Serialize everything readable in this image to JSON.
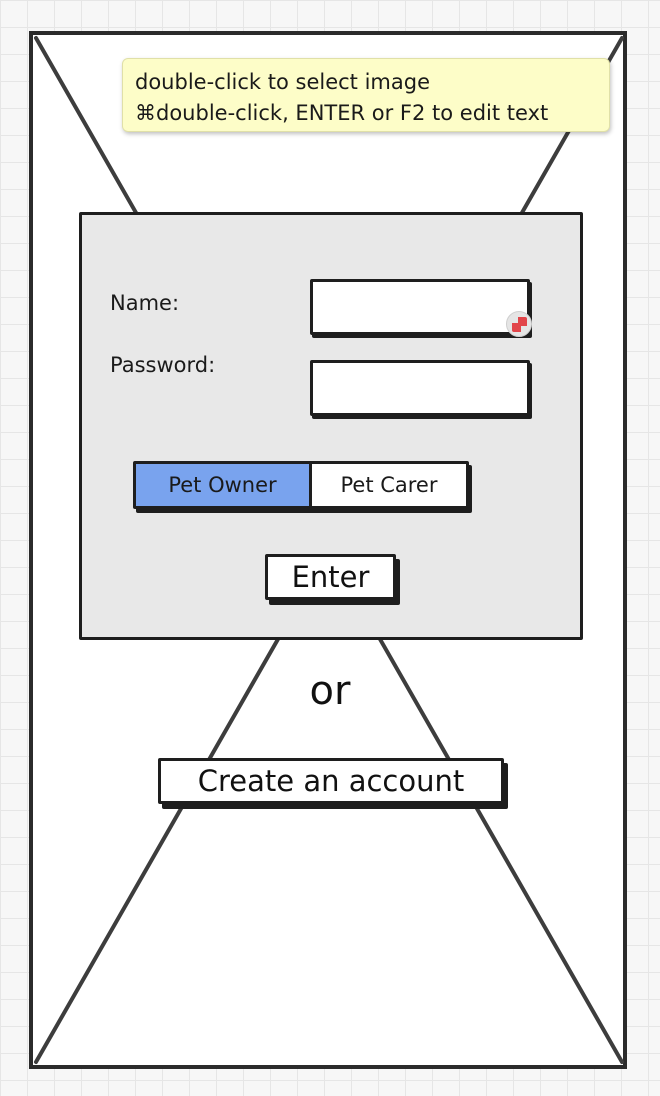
{
  "tooltip": {
    "line1": "double-click to select image",
    "line2": "⌘double-click, ENTER or F2 to edit text"
  },
  "form": {
    "name_label": "Name:",
    "name_value": "",
    "password_label": "Password:",
    "password_value": ""
  },
  "role_toggle": {
    "options": [
      "Pet Owner",
      "Pet Carer"
    ],
    "selected": "Pet Owner",
    "selected_color": "#79a3ee"
  },
  "enter_button": {
    "label": "Enter"
  },
  "separator": {
    "text": "or"
  },
  "create_button": {
    "label": "Create an account"
  },
  "icons": {
    "edit_badge": "edit-external-icon"
  }
}
